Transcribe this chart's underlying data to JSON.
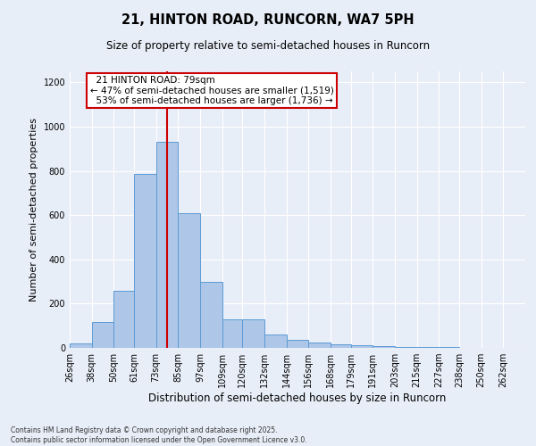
{
  "title1": "21, HINTON ROAD, RUNCORN, WA7 5PH",
  "title2": "Size of property relative to semi-detached houses in Runcorn",
  "xlabel": "Distribution of semi-detached houses by size in Runcorn",
  "ylabel": "Number of semi-detached properties",
  "footer1": "Contains HM Land Registry data © Crown copyright and database right 2025.",
  "footer2": "Contains public sector information licensed under the Open Government Licence v3.0.",
  "property_size": 79,
  "property_label": "21 HINTON ROAD: 79sqm",
  "pct_smaller": 47,
  "count_smaller": 1519,
  "pct_larger": 53,
  "count_larger": 1736,
  "bin_labels": [
    "26sqm",
    "38sqm",
    "50sqm",
    "61sqm",
    "73sqm",
    "85sqm",
    "97sqm",
    "109sqm",
    "120sqm",
    "132sqm",
    "144sqm",
    "156sqm",
    "168sqm",
    "179sqm",
    "191sqm",
    "203sqm",
    "215sqm",
    "227sqm",
    "238sqm",
    "250sqm",
    "262sqm"
  ],
  "bin_edges": [
    26,
    38,
    50,
    61,
    73,
    85,
    97,
    109,
    120,
    132,
    144,
    156,
    168,
    179,
    191,
    203,
    215,
    227,
    238,
    250,
    262,
    274
  ],
  "bar_values": [
    20,
    115,
    260,
    785,
    930,
    610,
    300,
    130,
    130,
    60,
    38,
    25,
    15,
    12,
    7,
    5,
    4,
    3,
    2,
    1,
    0
  ],
  "bar_color": "#aec6e8",
  "bar_edge_color": "#5b9bd5",
  "vline_x": 79,
  "vline_color": "#cc0000",
  "annotation_box_color": "#cc0000",
  "ylim": [
    0,
    1250
  ],
  "yticks": [
    0,
    200,
    400,
    600,
    800,
    1000,
    1200
  ],
  "bg_color": "#e8eef8",
  "grid_color": "#ffffff"
}
